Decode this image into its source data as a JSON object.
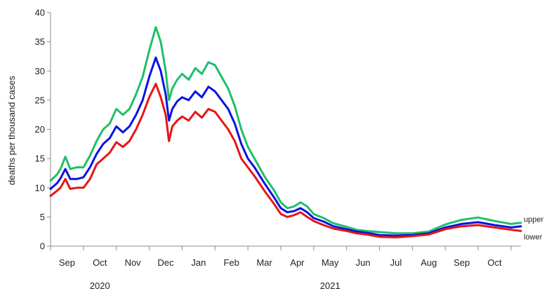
{
  "chart_data": {
    "type": "line",
    "title": "",
    "xlabel": "",
    "ylabel": "deaths per thousand cases",
    "ylim": [
      0,
      40
    ],
    "y_ticks": [
      0,
      5,
      10,
      15,
      20,
      25,
      30,
      35,
      40
    ],
    "x_range": [
      0,
      14.3
    ],
    "months": [
      "Sep",
      "Oct",
      "Nov",
      "Dec",
      "Jan",
      "Feb",
      "Mar",
      "Apr",
      "May",
      "Jun",
      "Jul",
      "Aug",
      "Sep",
      "Oct"
    ],
    "years": [
      {
        "label": "2020",
        "center": 1.5
      },
      {
        "label": "2021",
        "center": 8.5
      }
    ],
    "series_colors": {
      "upper": "#1fbf6a",
      "mid": "#0a12e0",
      "lower": "#e61515"
    },
    "series": [
      {
        "name": "upper",
        "legend_label": "upper",
        "color": "#1fbf6a",
        "x": [
          0,
          0.2,
          0.3,
          0.45,
          0.6,
          0.8,
          1.0,
          1.2,
          1.4,
          1.6,
          1.8,
          2.0,
          2.2,
          2.4,
          2.6,
          2.8,
          3.0,
          3.2,
          3.35,
          3.5,
          3.6,
          3.7,
          3.85,
          4.0,
          4.2,
          4.4,
          4.6,
          4.8,
          5.0,
          5.2,
          5.4,
          5.6,
          5.8,
          6.0,
          6.2,
          6.5,
          6.8,
          7.0,
          7.2,
          7.4,
          7.6,
          7.8,
          8.0,
          8.3,
          8.6,
          9.0,
          9.3,
          9.6,
          10.0,
          10.5,
          11.0,
          11.5,
          12.0,
          12.5,
          13.0,
          13.5,
          14.0,
          14.3
        ],
        "values": [
          11.2,
          12.3,
          13.2,
          15.3,
          13.2,
          13.5,
          13.5,
          15.5,
          18,
          20,
          21,
          23.5,
          22.5,
          23.5,
          26,
          29,
          33.5,
          37.5,
          35,
          30,
          25,
          27,
          28.5,
          29.5,
          28.5,
          30.5,
          29.5,
          31.5,
          31,
          29,
          27,
          24,
          20,
          17,
          15,
          12,
          9.5,
          7.5,
          6.5,
          6.8,
          7.5,
          6.8,
          5.5,
          4.8,
          3.9,
          3.3,
          2.8,
          2.6,
          2.4,
          2.2,
          2.2,
          2.5,
          3.7,
          4.5,
          4.9,
          4.3,
          3.8,
          4.0
        ]
      },
      {
        "name": "mid",
        "legend_label": "",
        "color": "#0a12e0",
        "x": [
          0,
          0.2,
          0.3,
          0.45,
          0.6,
          0.8,
          1.0,
          1.2,
          1.4,
          1.6,
          1.8,
          2.0,
          2.2,
          2.4,
          2.6,
          2.8,
          3.0,
          3.2,
          3.35,
          3.5,
          3.6,
          3.7,
          3.85,
          4.0,
          4.2,
          4.4,
          4.6,
          4.8,
          5.0,
          5.2,
          5.4,
          5.6,
          5.8,
          6.0,
          6.2,
          6.5,
          6.8,
          7.0,
          7.2,
          7.4,
          7.6,
          7.8,
          8.0,
          8.3,
          8.6,
          9.0,
          9.3,
          9.6,
          10.0,
          10.5,
          11.0,
          11.5,
          12.0,
          12.5,
          13.0,
          13.5,
          14.0,
          14.3
        ],
        "values": [
          9.8,
          10.8,
          11.6,
          13.2,
          11.5,
          11.5,
          11.8,
          13.5,
          15.8,
          17.5,
          18.5,
          20.5,
          19.5,
          20.5,
          22.5,
          25,
          29,
          32.3,
          30,
          26,
          21.5,
          23.5,
          24.8,
          25.5,
          25,
          26.5,
          25.5,
          27.3,
          26.5,
          25,
          23.5,
          21,
          17.5,
          15,
          13.5,
          10.8,
          8.3,
          6.5,
          5.8,
          6,
          6.5,
          5.8,
          4.8,
          4.2,
          3.4,
          2.9,
          2.5,
          2.3,
          1.9,
          1.8,
          1.9,
          2.2,
          3.2,
          3.8,
          4.1,
          3.6,
          3.2,
          3.4
        ]
      },
      {
        "name": "lower",
        "legend_label": "lower",
        "color": "#e61515",
        "x": [
          0,
          0.2,
          0.3,
          0.45,
          0.6,
          0.8,
          1.0,
          1.2,
          1.4,
          1.6,
          1.8,
          2.0,
          2.2,
          2.4,
          2.6,
          2.8,
          3.0,
          3.2,
          3.35,
          3.5,
          3.6,
          3.7,
          3.85,
          4.0,
          4.2,
          4.4,
          4.6,
          4.8,
          5.0,
          5.2,
          5.4,
          5.6,
          5.8,
          6.0,
          6.2,
          6.5,
          6.8,
          7.0,
          7.2,
          7.4,
          7.6,
          7.8,
          8.0,
          8.3,
          8.6,
          9.0,
          9.3,
          9.6,
          10.0,
          10.5,
          11.0,
          11.5,
          12.0,
          12.5,
          13.0,
          13.5,
          14.0,
          14.3
        ],
        "values": [
          8.6,
          9.5,
          10,
          11.5,
          9.8,
          10,
          10,
          11.5,
          14,
          15,
          16,
          17.8,
          17,
          18,
          20,
          22.5,
          25.5,
          27.8,
          25.5,
          22.5,
          18,
          20.5,
          21.5,
          22.2,
          21.5,
          23,
          22,
          23.5,
          23,
          21.5,
          20,
          18,
          15,
          13.5,
          12,
          9.5,
          7.2,
          5.5,
          5,
          5.3,
          5.8,
          5,
          4.3,
          3.6,
          3,
          2.6,
          2.2,
          2.0,
          1.6,
          1.5,
          1.7,
          2.0,
          2.9,
          3.4,
          3.6,
          3.2,
          2.8,
          2.6
        ]
      }
    ]
  }
}
